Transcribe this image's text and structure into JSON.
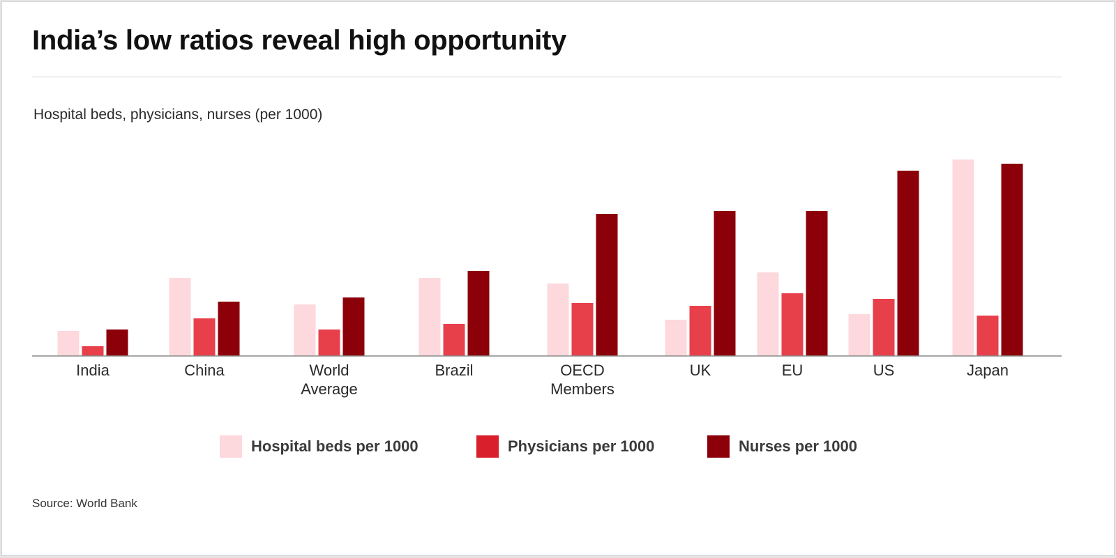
{
  "title": "India’s low ratios reveal high opportunity",
  "source": "Source: World Bank",
  "colors": {
    "hospital_beds": "#fdd8dd",
    "physicians": "#e8404b",
    "nurses": "#8c0009",
    "legend_physicians": "#d91f2b"
  },
  "chart_data": {
    "type": "bar",
    "title": "India’s low ratios reveal high opportunity",
    "ylabel": "Hospital beds, physicians, nurses (per 1000)",
    "xlabel": "",
    "ylim": [
      0,
      14
    ],
    "grid": false,
    "legend_position": "bottom",
    "categories": [
      [
        "India"
      ],
      [
        "China"
      ],
      [
        "World",
        "Average"
      ],
      [
        "Brazil"
      ],
      [
        "OECD",
        "Members"
      ],
      [
        "UK"
      ],
      [
        "EU"
      ],
      [
        "US"
      ],
      [
        "Japan"
      ]
    ],
    "series": [
      {
        "name": "Hospital beds per 1000",
        "color": "#fdd8dd",
        "values": [
          1.8,
          5.6,
          3.7,
          5.6,
          5.2,
          2.6,
          6.0,
          3.0,
          14.1
        ]
      },
      {
        "name": "Physicians per 1000",
        "color": "#e8404b",
        "values": [
          0.7,
          2.7,
          1.9,
          2.3,
          3.8,
          3.6,
          4.5,
          4.1,
          2.9
        ]
      },
      {
        "name": "Nurses per 1000",
        "color": "#8c0009",
        "values": [
          1.9,
          3.9,
          4.2,
          6.1,
          10.2,
          10.4,
          10.4,
          13.3,
          13.8
        ]
      }
    ]
  },
  "legend": [
    {
      "label": "Hospital beds per 1000",
      "color": "#fdd8dd"
    },
    {
      "label": "Physicians per 1000",
      "color": "#d91f2b"
    },
    {
      "label": "Nurses per 1000",
      "color": "#8c0009"
    }
  ]
}
